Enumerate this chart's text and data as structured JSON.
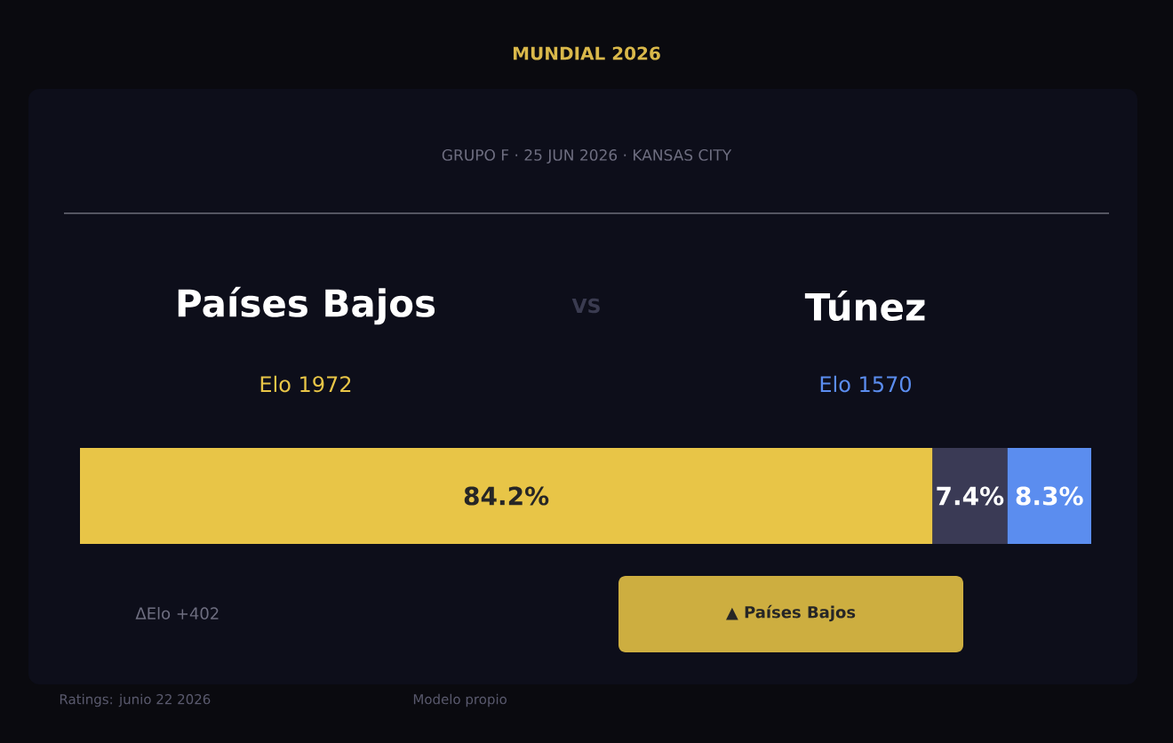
{
  "chart_data": {
    "type": "bar",
    "orientation": "horizontal",
    "stacked": true,
    "tick_labels": false,
    "title": "MUNDIAL  2026",
    "subtitle": "GRUPO  F   ·   25 JUN 2026   ·   KANSAS CITY",
    "categories": [
      null
    ],
    "series": [
      {
        "color": "#e8c547",
        "values": [
          84.2
        ],
        "value_labels": [
          "84.2%"
        ]
      },
      {
        "color": "#3a3a55",
        "values": [
          7.4
        ],
        "value_labels": [
          "7.4%"
        ]
      },
      {
        "color": "#5b8def",
        "values": [
          8.3
        ],
        "value_labels": [
          "8.3%"
        ]
      }
    ],
    "annotations": [
      "Países Bajos",
      "VS",
      "Túnez",
      "Elo  1972",
      "Elo  1570",
      "ΔElo  +402",
      "▲  Países Bajos",
      "Ratings: junio 22 2026",
      "Modelo propio"
    ]
  }
}
